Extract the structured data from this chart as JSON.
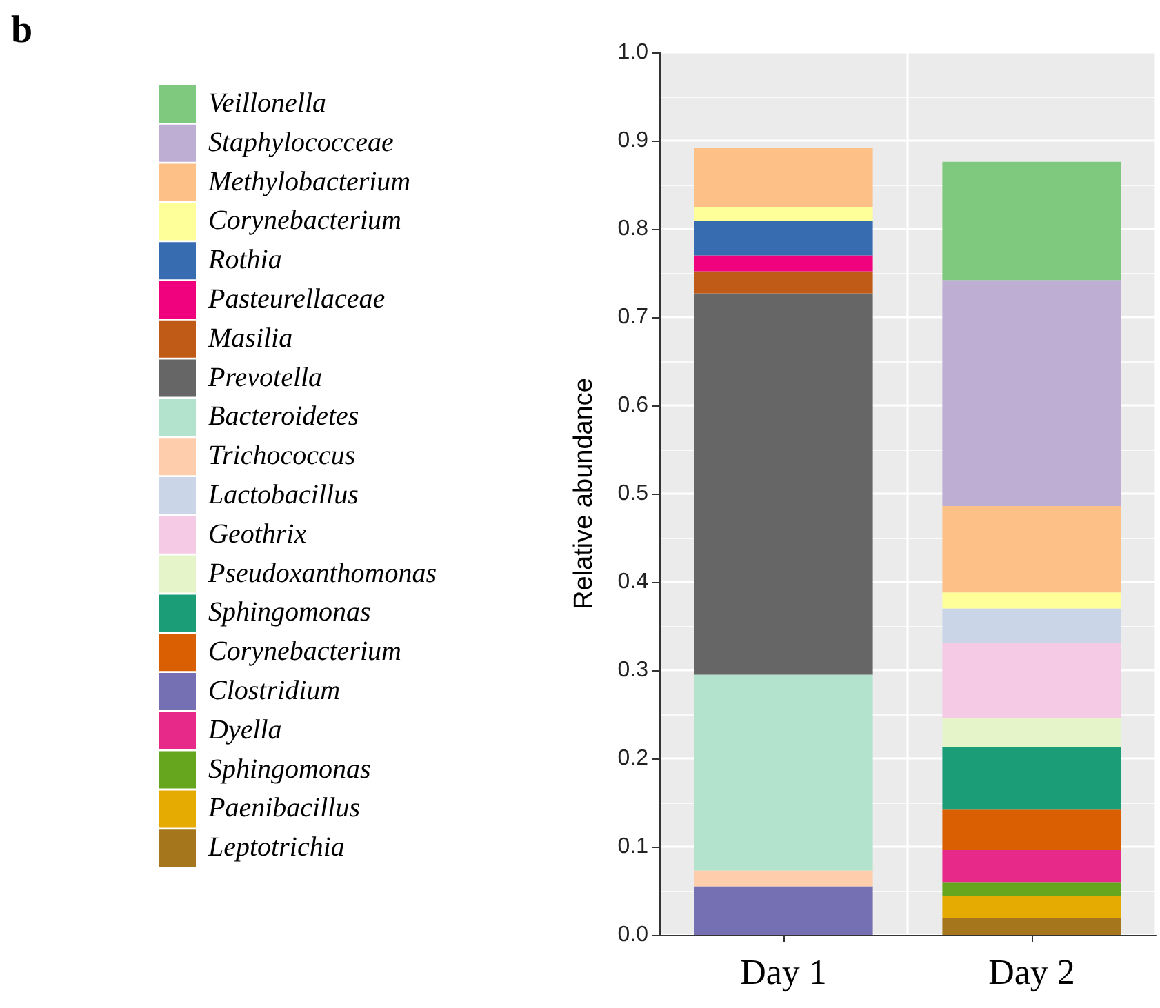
{
  "chart_data": {
    "type": "bar",
    "stacked": true,
    "annotations": [
      "b"
    ],
    "ylabel": "Relative abundance",
    "categories": [
      "Day 1",
      "Day 2"
    ],
    "ylim": [
      0,
      1
    ],
    "yticks": [
      {
        "value": 0,
        "label": "0.0"
      },
      0.1,
      0.2,
      0.3,
      0.4,
      0.5,
      0.6,
      0.7,
      0.8,
      0.9,
      {
        "value": 1,
        "label": "1.0"
      }
    ],
    "grid": true,
    "legend": "left",
    "series": [
      {
        "name": "Leptotrichia",
        "color": "#a6761d",
        "values": [
          null,
          0.019
        ]
      },
      {
        "name": "Paenibacillus",
        "color": "#e6ab02",
        "values": [
          null,
          0.025
        ]
      },
      {
        "name": "Sphingomonas",
        "color": "#66a61e",
        "values": [
          null,
          0.016
        ]
      },
      {
        "name": "Dyella",
        "color": "#e7298a",
        "values": [
          null,
          0.036
        ]
      },
      {
        "name": "Clostridium",
        "color": "#7570b3",
        "values": [
          0.055,
          null
        ]
      },
      {
        "name": "Corynebacterium",
        "color": "#d95f02",
        "values": [
          null,
          0.046
        ]
      },
      {
        "name": "Sphingomonas",
        "color": "#1b9e77",
        "values": [
          null,
          0.071
        ]
      },
      {
        "name": "Pseudoxanthomonas",
        "color": "#e6f5c9",
        "values": [
          null,
          0.033
        ]
      },
      {
        "name": "Geothrix",
        "color": "#f4cae4",
        "values": [
          null,
          0.085
        ]
      },
      {
        "name": "Lactobacillus",
        "color": "#cbd5e8",
        "values": [
          null,
          0.039
        ]
      },
      {
        "name": "Trichococcus",
        "color": "#fdcdac",
        "values": [
          0.018,
          null
        ]
      },
      {
        "name": "Bacteroidetes",
        "color": "#b3e2cd",
        "values": [
          0.222,
          null
        ]
      },
      {
        "name": "Prevotella",
        "color": "#666666",
        "values": [
          0.432,
          null
        ]
      },
      {
        "name": "Masilia",
        "color": "#bf5b17",
        "values": [
          0.025,
          null
        ]
      },
      {
        "name": "Pasteurellaceae",
        "color": "#f0027f",
        "values": [
          0.018,
          null
        ]
      },
      {
        "name": "Rothia",
        "color": "#386cb0",
        "values": [
          0.039,
          null
        ]
      },
      {
        "name": "Corynebacterium",
        "color": "#ffff99",
        "values": [
          0.016,
          0.018
        ]
      },
      {
        "name": "Methylobacterium",
        "color": "#fdc086",
        "values": [
          0.067,
          0.098
        ]
      },
      {
        "name": "Staphylococceae",
        "color": "#beaed4",
        "values": [
          null,
          0.256
        ]
      },
      {
        "name": "Veillonella",
        "color": "#7fc97f",
        "values": [
          null,
          0.134
        ]
      }
    ],
    "legend_title": null
  }
}
